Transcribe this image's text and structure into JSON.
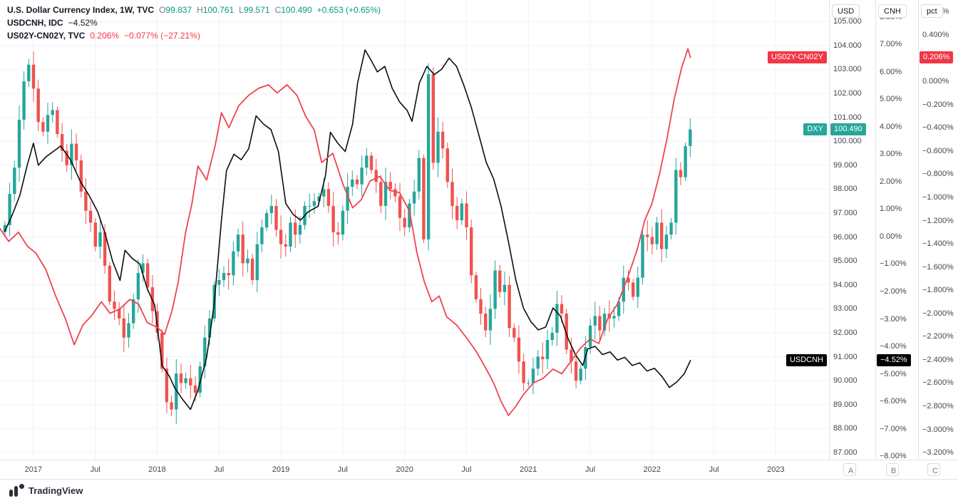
{
  "header": {
    "row1": {
      "title": "U.S. Dollar Currency Index, 1W, TVC",
      "o_label": "O",
      "o": "99.837",
      "h_label": "H",
      "h": "100.761",
      "l_label": "L",
      "l": "99.571",
      "c_label": "C",
      "c": "100.490",
      "change": "+0.653 (+0.65%)"
    },
    "row2": {
      "title": "USDCNH, IDC",
      "value": "−4.52%"
    },
    "row3": {
      "title": "US02Y-CN02Y, TVC",
      "value": "0.206%",
      "change": "−0.077% (−27.21%)"
    }
  },
  "time_axis": {
    "scale_buttons": [
      "A",
      "B",
      "C"
    ]
  },
  "footer": {
    "brand": "TradingView"
  },
  "chart_data": {
    "type": "mixed",
    "title": "U.S. Dollar Currency Index, 1W, TVC with USDCNH and US02Y-CN02Y overlays",
    "grid": true,
    "grid_color": "#eff2f7",
    "x_axis": {
      "start": 2016.73,
      "end": 2023.43,
      "labels": [
        {
          "t": 2017.0,
          "text": "2017"
        },
        {
          "t": 2017.5,
          "text": "Jul"
        },
        {
          "t": 2018.0,
          "text": "2018"
        },
        {
          "t": 2018.5,
          "text": "Jul"
        },
        {
          "t": 2019.0,
          "text": "2019"
        },
        {
          "t": 2019.5,
          "text": "Jul"
        },
        {
          "t": 2020.0,
          "text": "2020"
        },
        {
          "t": 2020.5,
          "text": "Jul"
        },
        {
          "t": 2021.0,
          "text": "2021"
        },
        {
          "t": 2021.5,
          "text": "Jul"
        },
        {
          "t": 2022.0,
          "text": "2022"
        },
        {
          "t": 2022.5,
          "text": "Jul"
        },
        {
          "t": 2023.0,
          "text": "2023"
        }
      ]
    },
    "y_axes": [
      {
        "id": "usd",
        "label": "USD",
        "top_value": 105.9,
        "bottom_value": 86.7,
        "tick_step": 1,
        "tick_format": "fixed3"
      },
      {
        "id": "cnh",
        "label": "CNH",
        "top_value": 8.62,
        "bottom_value": -8.13,
        "tick_step": 1,
        "tick_format": "pct2"
      },
      {
        "id": "pct",
        "label": "pct",
        "top_value": 0.701,
        "bottom_value": -3.261,
        "tick_step": 0.2,
        "tick_format": "pct3"
      }
    ],
    "series": [
      {
        "id": "dxy",
        "name": "U.S. Dollar Currency Index",
        "type": "candlestick",
        "axis": "usd",
        "t0": 2016.77,
        "dt": 0.03846,
        "up_color": "#26a69a",
        "down_color": "#ef5350",
        "closes": [
          96.5,
          97.8,
          98.9,
          100.9,
          102.5,
          103.2,
          102.2,
          100.8,
          100.4,
          101.1,
          101.3,
          100.3,
          99.6,
          99.0,
          99.9,
          99.2,
          97.9,
          97.1,
          96.6,
          95.6,
          96.2,
          94.8,
          93.3,
          93.0,
          92.6,
          91.8,
          92.4,
          93.4,
          94.5,
          94.9,
          93.9,
          92.9,
          92.0,
          90.5,
          89.1,
          88.8,
          90.3,
          89.9,
          90.1,
          89.8,
          89.5,
          90.6,
          91.8,
          92.6,
          94.0,
          94.2,
          94.5,
          94.4,
          95.4,
          96.1,
          94.9,
          95.1,
          94.2,
          95.7,
          96.4,
          97.0,
          97.3,
          96.3,
          95.7,
          95.6,
          96.6,
          96.1,
          96.5,
          97.3,
          97.3,
          97.5,
          97.7,
          98.0,
          97.3,
          96.2,
          96.1,
          97.1,
          98.1,
          98.4,
          98.2,
          98.9,
          99.4,
          98.8,
          98.3,
          97.3,
          98.3,
          98.0,
          97.7,
          96.8,
          96.4,
          97.4,
          97.9,
          99.3,
          95.9,
          102.8,
          99.1,
          100.4,
          99.7,
          98.3,
          97.3,
          96.7,
          97.4,
          96.4,
          94.4,
          93.4,
          92.8,
          92.1,
          93.0,
          94.6,
          93.7,
          94.0,
          92.2,
          91.8,
          90.8,
          89.9,
          89.9,
          90.5,
          91.0,
          90.9,
          91.7,
          92.0,
          93.2,
          92.8,
          91.3,
          90.8,
          90.0,
          90.5,
          91.4,
          92.3,
          92.7,
          92.1,
          92.8,
          92.6,
          92.7,
          93.3,
          94.3,
          94.1,
          93.5,
          94.3,
          96.1,
          96.0,
          95.7,
          96.6,
          95.5,
          96.1,
          96.6,
          98.8,
          98.5,
          99.8,
          100.49
        ],
        "last_value": 100.49
      },
      {
        "id": "usdcnh",
        "name": "USDCNH",
        "type": "line",
        "axis": "cnh",
        "color": "#0d0d0d",
        "width": 1.6,
        "points": [
          [
            2016.77,
            0.2
          ],
          [
            2016.83,
            0.8
          ],
          [
            2016.89,
            1.5
          ],
          [
            2016.95,
            2.6
          ],
          [
            2017.0,
            3.4
          ],
          [
            2017.04,
            2.6
          ],
          [
            2017.1,
            2.9
          ],
          [
            2017.16,
            3.1
          ],
          [
            2017.22,
            3.3
          ],
          [
            2017.3,
            2.8
          ],
          [
            2017.38,
            2.0
          ],
          [
            2017.45,
            1.5
          ],
          [
            2017.52,
            0.9
          ],
          [
            2017.58,
            0.1
          ],
          [
            2017.64,
            -0.9
          ],
          [
            2017.7,
            -1.6
          ],
          [
            2017.74,
            -0.5
          ],
          [
            2017.8,
            -0.8
          ],
          [
            2017.86,
            -1.0
          ],
          [
            2017.92,
            -1.9
          ],
          [
            2017.98,
            -2.5
          ],
          [
            2018.04,
            -4.7
          ],
          [
            2018.1,
            -5.1
          ],
          [
            2018.14,
            -5.5
          ],
          [
            2018.2,
            -5.9
          ],
          [
            2018.27,
            -6.3
          ],
          [
            2018.33,
            -5.6
          ],
          [
            2018.4,
            -4.4
          ],
          [
            2018.46,
            -2.5
          ],
          [
            2018.52,
            0.6
          ],
          [
            2018.56,
            2.4
          ],
          [
            2018.62,
            3.0
          ],
          [
            2018.68,
            2.8
          ],
          [
            2018.74,
            3.2
          ],
          [
            2018.8,
            4.4
          ],
          [
            2018.86,
            4.1
          ],
          [
            2018.92,
            3.9
          ],
          [
            2018.98,
            3.1
          ],
          [
            2019.04,
            1.2
          ],
          [
            2019.1,
            0.8
          ],
          [
            2019.16,
            0.6
          ],
          [
            2019.22,
            0.9
          ],
          [
            2019.3,
            1.1
          ],
          [
            2019.36,
            2.2
          ],
          [
            2019.4,
            3.8
          ],
          [
            2019.46,
            3.4
          ],
          [
            2019.52,
            3.1
          ],
          [
            2019.58,
            4.1
          ],
          [
            2019.62,
            5.6
          ],
          [
            2019.68,
            6.8
          ],
          [
            2019.72,
            6.5
          ],
          [
            2019.78,
            6.0
          ],
          [
            2019.84,
            6.2
          ],
          [
            2019.9,
            5.4
          ],
          [
            2019.96,
            4.9
          ],
          [
            2020.02,
            4.6
          ],
          [
            2020.06,
            4.2
          ],
          [
            2020.12,
            5.6
          ],
          [
            2020.18,
            6.2
          ],
          [
            2020.24,
            5.9
          ],
          [
            2020.3,
            6.1
          ],
          [
            2020.36,
            6.5
          ],
          [
            2020.42,
            6.2
          ],
          [
            2020.48,
            5.5
          ],
          [
            2020.54,
            4.7
          ],
          [
            2020.6,
            3.7
          ],
          [
            2020.66,
            2.7
          ],
          [
            2020.72,
            2.1
          ],
          [
            2020.78,
            1.1
          ],
          [
            2020.84,
            -0.2
          ],
          [
            2020.9,
            -1.6
          ],
          [
            2020.96,
            -2.6
          ],
          [
            2021.02,
            -3.1
          ],
          [
            2021.08,
            -3.4
          ],
          [
            2021.14,
            -3.3
          ],
          [
            2021.2,
            -2.6
          ],
          [
            2021.26,
            -2.9
          ],
          [
            2021.32,
            -3.7
          ],
          [
            2021.38,
            -4.3
          ],
          [
            2021.44,
            -4.7
          ],
          [
            2021.48,
            -4.1
          ],
          [
            2021.54,
            -4.0
          ],
          [
            2021.6,
            -4.3
          ],
          [
            2021.66,
            -4.2
          ],
          [
            2021.72,
            -4.5
          ],
          [
            2021.78,
            -4.4
          ],
          [
            2021.84,
            -4.7
          ],
          [
            2021.9,
            -4.6
          ],
          [
            2021.96,
            -4.9
          ],
          [
            2022.02,
            -4.8
          ],
          [
            2022.08,
            -5.1
          ],
          [
            2022.14,
            -5.5
          ],
          [
            2022.2,
            -5.3
          ],
          [
            2022.26,
            -5.0
          ],
          [
            2022.31,
            -4.52
          ]
        ],
        "last_value": -4.52
      },
      {
        "id": "spread",
        "name": "US02Y-CN02Y",
        "type": "line",
        "axis": "pct",
        "color": "#f0434e",
        "width": 1.8,
        "points": [
          [
            2016.73,
            -1.27
          ],
          [
            2016.8,
            -1.38
          ],
          [
            2016.88,
            -1.3
          ],
          [
            2016.95,
            -1.42
          ],
          [
            2017.02,
            -1.48
          ],
          [
            2017.1,
            -1.62
          ],
          [
            2017.18,
            -1.85
          ],
          [
            2017.26,
            -2.05
          ],
          [
            2017.33,
            -2.27
          ],
          [
            2017.4,
            -2.1
          ],
          [
            2017.47,
            -2.02
          ],
          [
            2017.55,
            -1.9
          ],
          [
            2017.62,
            -2.0
          ],
          [
            2017.7,
            -1.96
          ],
          [
            2017.78,
            -1.88
          ],
          [
            2017.85,
            -1.92
          ],
          [
            2017.92,
            -2.08
          ],
          [
            2018.0,
            -2.12
          ],
          [
            2018.06,
            -2.18
          ],
          [
            2018.12,
            -1.98
          ],
          [
            2018.17,
            -1.73
          ],
          [
            2018.23,
            -1.3
          ],
          [
            2018.28,
            -1.06
          ],
          [
            2018.33,
            -0.73
          ],
          [
            2018.4,
            -0.85
          ],
          [
            2018.47,
            -0.55
          ],
          [
            2018.52,
            -0.27
          ],
          [
            2018.58,
            -0.4
          ],
          [
            2018.66,
            -0.21
          ],
          [
            2018.74,
            -0.12
          ],
          [
            2018.82,
            -0.06
          ],
          [
            2018.9,
            -0.03
          ],
          [
            2018.97,
            -0.1
          ],
          [
            2019.05,
            -0.03
          ],
          [
            2019.13,
            -0.12
          ],
          [
            2019.2,
            -0.3
          ],
          [
            2019.27,
            -0.42
          ],
          [
            2019.33,
            -0.7
          ],
          [
            2019.42,
            -0.62
          ],
          [
            2019.5,
            -0.88
          ],
          [
            2019.58,
            -1.09
          ],
          [
            2019.65,
            -1.02
          ],
          [
            2019.72,
            -0.86
          ],
          [
            2019.8,
            -0.82
          ],
          [
            2019.88,
            -0.94
          ],
          [
            2019.96,
            -0.96
          ],
          [
            2020.04,
            -1.12
          ],
          [
            2020.1,
            -1.48
          ],
          [
            2020.16,
            -1.73
          ],
          [
            2020.22,
            -1.9
          ],
          [
            2020.28,
            -1.85
          ],
          [
            2020.34,
            -2.03
          ],
          [
            2020.42,
            -2.1
          ],
          [
            2020.5,
            -2.21
          ],
          [
            2020.58,
            -2.33
          ],
          [
            2020.66,
            -2.48
          ],
          [
            2020.72,
            -2.6
          ],
          [
            2020.78,
            -2.76
          ],
          [
            2020.84,
            -2.88
          ],
          [
            2020.9,
            -2.8
          ],
          [
            2020.96,
            -2.7
          ],
          [
            2021.04,
            -2.6
          ],
          [
            2021.12,
            -2.56
          ],
          [
            2021.2,
            -2.48
          ],
          [
            2021.27,
            -2.52
          ],
          [
            2021.34,
            -2.42
          ],
          [
            2021.42,
            -2.3
          ],
          [
            2021.5,
            -2.22
          ],
          [
            2021.57,
            -2.26
          ],
          [
            2021.64,
            -2.05
          ],
          [
            2021.72,
            -1.92
          ],
          [
            2021.8,
            -1.7
          ],
          [
            2021.88,
            -1.45
          ],
          [
            2021.94,
            -1.2
          ],
          [
            2022.0,
            -1.05
          ],
          [
            2022.06,
            -0.8
          ],
          [
            2022.12,
            -0.5
          ],
          [
            2022.18,
            -0.15
          ],
          [
            2022.24,
            0.12
          ],
          [
            2022.29,
            0.28
          ],
          [
            2022.31,
            0.206
          ]
        ],
        "last_value": 0.206
      }
    ],
    "badges": [
      {
        "id": "spread-name-badge",
        "text": "US02Y-CN02Y",
        "bg": "#f23645",
        "axis": "pct",
        "value": 0.206,
        "col": "plot"
      },
      {
        "id": "spread-price-badge",
        "text": "0.206%",
        "bg": "#f23645",
        "axis": "pct",
        "value": 0.206,
        "col": "pct"
      },
      {
        "id": "dxy-name-badge",
        "text": "DXY",
        "bg": "#26a69a",
        "axis": "usd",
        "value": 100.49,
        "col": "plot"
      },
      {
        "id": "dxy-price-badge",
        "text": "100.490",
        "bg": "#26a69a",
        "axis": "usd",
        "value": 100.49,
        "col": "usd"
      },
      {
        "id": "usdcnh-name-badge",
        "text": "USDCNH",
        "bg": "#000000",
        "axis": "cnh",
        "value": -4.52,
        "col": "plot"
      },
      {
        "id": "usdcnh-price-badge",
        "text": "−4.52%",
        "bg": "#000000",
        "axis": "cnh",
        "value": -4.52,
        "col": "cnh"
      }
    ]
  }
}
